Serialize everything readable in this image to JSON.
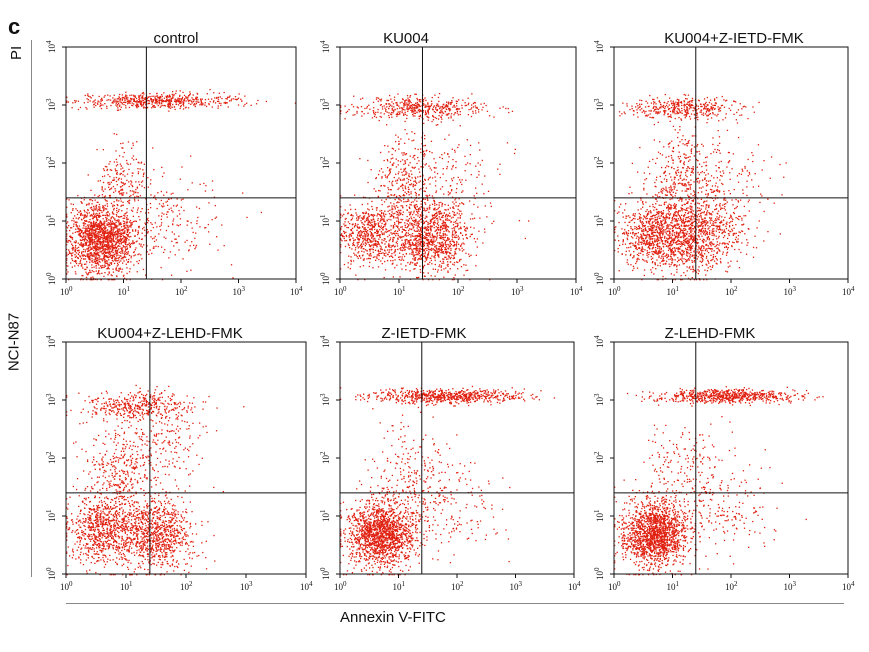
{
  "figure": {
    "panel_letter": "c",
    "y_axis_label": "PI",
    "row_label": "NCI-N87",
    "x_axis_label": "Annexin V-FITC"
  },
  "colors": {
    "dots": "#e02010",
    "axes": "#111111",
    "gates": "#111111"
  },
  "chart_data": [
    {
      "type": "scatter",
      "title": "control",
      "x_scale": "log",
      "y_scale": "log",
      "xlim": [
        1,
        10000
      ],
      "ylim": [
        1,
        10000
      ],
      "gate": [
        25,
        25
      ],
      "x_ticks": [
        "10",
        "10",
        "10",
        "10",
        "10"
      ],
      "y_ticks": [
        "10",
        "10",
        "10",
        "10",
        "10"
      ],
      "tick_exponents": [
        "0",
        "1",
        "2",
        "3",
        "4"
      ],
      "populations": [
        {
          "x": 4,
          "y": 5,
          "spread": [
            0.3,
            0.3
          ],
          "weight": 0.62
        },
        {
          "x": 40,
          "y": 1200,
          "spread": [
            0.7,
            0.06
          ],
          "weight": 0.22
        },
        {
          "x": 10,
          "y": 50,
          "spread": [
            0.25,
            0.35
          ],
          "weight": 0.08
        },
        {
          "x": 60,
          "y": 10,
          "spread": [
            0.5,
            0.4
          ],
          "weight": 0.08
        }
      ]
    },
    {
      "type": "scatter",
      "title": "KU004",
      "x_scale": "log",
      "y_scale": "log",
      "xlim": [
        1,
        10000
      ],
      "ylim": [
        1,
        10000
      ],
      "gate": [
        25,
        25
      ],
      "x_ticks": [
        "10",
        "10",
        "10",
        "10",
        "10"
      ],
      "y_ticks": [
        "10",
        "10",
        "10",
        "10",
        "10"
      ],
      "tick_exponents": [
        "0",
        "1",
        "2",
        "3",
        "4"
      ],
      "populations": [
        {
          "x": 3,
          "y": 6,
          "spread": [
            0.25,
            0.25
          ],
          "weight": 0.22
        },
        {
          "x": 30,
          "y": 5,
          "spread": [
            0.35,
            0.32
          ],
          "weight": 0.4
        },
        {
          "x": 20,
          "y": 900,
          "spread": [
            0.55,
            0.1
          ],
          "weight": 0.18
        },
        {
          "x": 12,
          "y": 60,
          "spread": [
            0.3,
            0.4
          ],
          "weight": 0.12
        },
        {
          "x": 80,
          "y": 30,
          "spread": [
            0.5,
            0.5
          ],
          "weight": 0.08
        }
      ]
    },
    {
      "type": "scatter",
      "title": "KU004+Z-IETD-FMK",
      "x_scale": "log",
      "y_scale": "log",
      "xlim": [
        1,
        10000
      ],
      "ylim": [
        1,
        10000
      ],
      "gate": [
        25,
        25
      ],
      "x_ticks": [
        "10",
        "10",
        "10",
        "10",
        "10"
      ],
      "y_ticks": [
        "10",
        "10",
        "10",
        "10",
        "10"
      ],
      "tick_exponents": [
        "0",
        "1",
        "2",
        "3",
        "4"
      ],
      "populations": [
        {
          "x": 5,
          "y": 6,
          "spread": [
            0.3,
            0.3
          ],
          "weight": 0.3
        },
        {
          "x": 25,
          "y": 6,
          "spread": [
            0.35,
            0.32
          ],
          "weight": 0.35
        },
        {
          "x": 15,
          "y": 900,
          "spread": [
            0.45,
            0.1
          ],
          "weight": 0.15
        },
        {
          "x": 15,
          "y": 60,
          "spread": [
            0.3,
            0.4
          ],
          "weight": 0.12
        },
        {
          "x": 60,
          "y": 30,
          "spread": [
            0.5,
            0.5
          ],
          "weight": 0.08
        }
      ]
    },
    {
      "type": "scatter",
      "title": "KU004+Z-LEHD-FMK",
      "x_scale": "log",
      "y_scale": "log",
      "xlim": [
        1,
        10000
      ],
      "ylim": [
        1,
        10000
      ],
      "gate": [
        25,
        25
      ],
      "x_ticks": [
        "10",
        "10",
        "10",
        "10",
        "10"
      ],
      "y_ticks": [
        "10",
        "10",
        "10",
        "10",
        "10"
      ],
      "tick_exponents": [
        "0",
        "1",
        "2",
        "3",
        "4"
      ],
      "populations": [
        {
          "x": 4,
          "y": 6,
          "spread": [
            0.3,
            0.28
          ],
          "weight": 0.3
        },
        {
          "x": 30,
          "y": 5,
          "spread": [
            0.32,
            0.3
          ],
          "weight": 0.35
        },
        {
          "x": 15,
          "y": 800,
          "spread": [
            0.45,
            0.12
          ],
          "weight": 0.15
        },
        {
          "x": 8,
          "y": 60,
          "spread": [
            0.3,
            0.35
          ],
          "weight": 0.12
        },
        {
          "x": 40,
          "y": 200,
          "spread": [
            0.4,
            0.4
          ],
          "weight": 0.08
        }
      ]
    },
    {
      "type": "scatter",
      "title": "Z-IETD-FMK",
      "x_scale": "log",
      "y_scale": "log",
      "xlim": [
        1,
        10000
      ],
      "ylim": [
        1,
        10000
      ],
      "gate": [
        25,
        25
      ],
      "x_ticks": [
        "10",
        "10",
        "10",
        "10",
        "10"
      ],
      "y_ticks": [
        "10",
        "10",
        "10",
        "10",
        "10"
      ],
      "tick_exponents": [
        "0",
        "1",
        "2",
        "3",
        "4"
      ],
      "populations": [
        {
          "x": 5,
          "y": 5,
          "spread": [
            0.28,
            0.28
          ],
          "weight": 0.6
        },
        {
          "x": 60,
          "y": 1200,
          "spread": [
            0.65,
            0.06
          ],
          "weight": 0.25
        },
        {
          "x": 15,
          "y": 60,
          "spread": [
            0.35,
            0.45
          ],
          "weight": 0.07
        },
        {
          "x": 60,
          "y": 15,
          "spread": [
            0.5,
            0.4
          ],
          "weight": 0.08
        }
      ]
    },
    {
      "type": "scatter",
      "title": "Z-LEHD-FMK",
      "x_scale": "log",
      "y_scale": "log",
      "xlim": [
        1,
        10000
      ],
      "ylim": [
        1,
        10000
      ],
      "gate": [
        25,
        25
      ],
      "x_ticks": [
        "10",
        "10",
        "10",
        "10",
        "10"
      ],
      "y_ticks": [
        "10",
        "10",
        "10",
        "10",
        "10"
      ],
      "tick_exponents": [
        "0",
        "1",
        "2",
        "3",
        "4"
      ],
      "populations": [
        {
          "x": 5,
          "y": 5,
          "spread": [
            0.28,
            0.28
          ],
          "weight": 0.6
        },
        {
          "x": 80,
          "y": 1200,
          "spread": [
            0.6,
            0.06
          ],
          "weight": 0.25
        },
        {
          "x": 15,
          "y": 60,
          "spread": [
            0.35,
            0.45
          ],
          "weight": 0.07
        },
        {
          "x": 60,
          "y": 15,
          "spread": [
            0.5,
            0.4
          ],
          "weight": 0.08
        }
      ]
    }
  ]
}
